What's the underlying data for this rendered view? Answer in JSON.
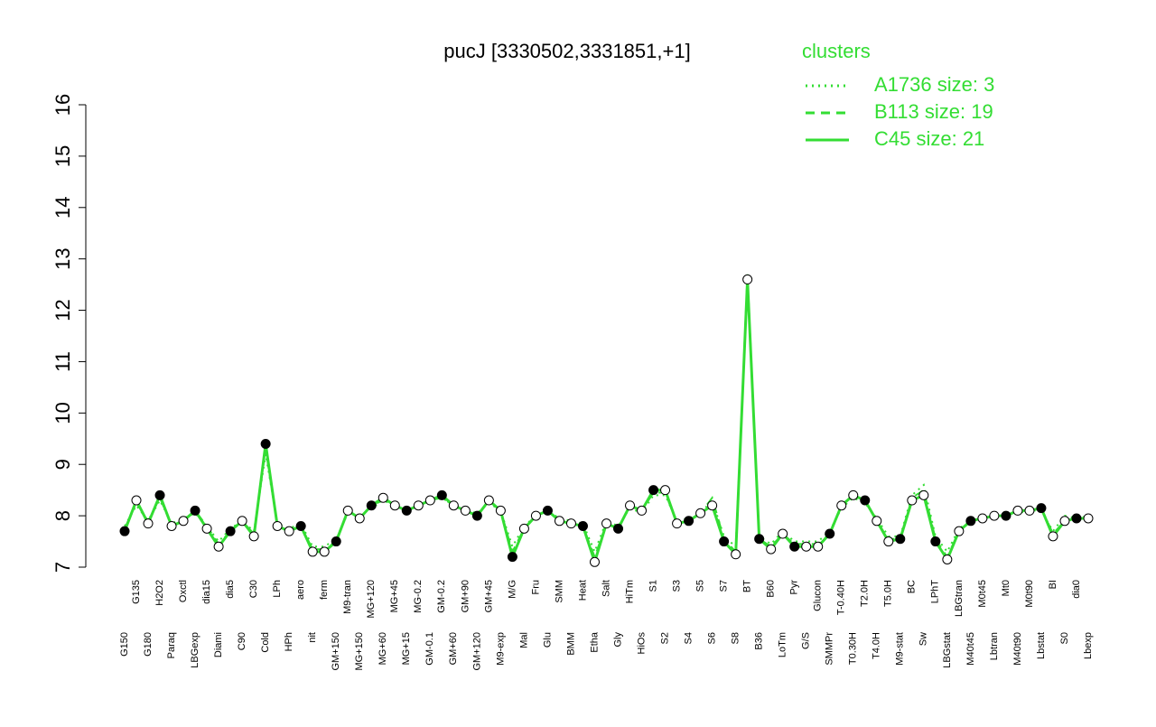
{
  "chart_data": {
    "type": "line",
    "title": "pucJ [3330502,3331851,+1]",
    "legend_title": "clusters",
    "legend_position": "top-right",
    "ylim": [
      7,
      16
    ],
    "yticks": [
      7,
      8,
      9,
      10,
      11,
      12,
      13,
      14,
      15,
      16
    ],
    "categories": [
      "G150",
      "G135",
      "G180",
      "H2O2",
      "Paraq",
      "Oxctl",
      "LBGexp",
      "dia15",
      "Diami",
      "dia5",
      "C90",
      "C30",
      "Cold",
      "LPh",
      "HPh",
      "aero",
      "nit",
      "ferm",
      "GM+150",
      "M9-tran",
      "MG+150",
      "MG+120",
      "MG+60",
      "MG+45",
      "MG+15",
      "MG-0.2",
      "GM-0.1",
      "GM-0.2",
      "GM+60",
      "GM+90",
      "GM+120",
      "GM+45",
      "M9-exp",
      "M/G",
      "Mal",
      "Fru",
      "Glu",
      "SMM",
      "BMM",
      "Heat",
      "Etha",
      "Salt",
      "Gly",
      "HiTm",
      "HiOs",
      "S1",
      "S2",
      "S3",
      "S4",
      "S5",
      "S6",
      "S7",
      "S8",
      "BT",
      "B36",
      "B60",
      "LoTm",
      "Pyr",
      "G/S",
      "Glucon",
      "SMMPr",
      "T-0.40H",
      "T0.30H",
      "T2.0H",
      "T4.0H",
      "T5.0H",
      "M9-stat",
      "BC",
      "Sw",
      "LPhT",
      "LBGstat",
      "LBGtran",
      "M40t45",
      "M0t45",
      "Lbtran",
      "Mt0",
      "M40t90",
      "M0t90",
      "Lbstat",
      "BI",
      "S0",
      "dia0",
      "Lbexp"
    ],
    "series": [
      {
        "name": "A1736 size: 3",
        "color": "#33dd33",
        "dash": "dotted",
        "values": [
          7.8,
          8.2,
          7.9,
          8.3,
          7.85,
          7.95,
          8.05,
          7.8,
          7.5,
          7.75,
          7.9,
          7.7,
          9.2,
          7.85,
          7.75,
          7.85,
          7.4,
          7.4,
          7.55,
          8.05,
          8.0,
          8.15,
          8.3,
          8.2,
          8.1,
          8.2,
          8.25,
          8.35,
          8.2,
          8.1,
          8.05,
          8.25,
          8.1,
          7.4,
          7.8,
          8.0,
          8.1,
          7.95,
          7.9,
          7.85,
          7.3,
          7.9,
          7.8,
          8.15,
          8.05,
          8.4,
          8.4,
          7.9,
          7.95,
          8.05,
          8.3,
          7.6,
          7.4,
          12.5,
          7.6,
          7.45,
          7.7,
          7.5,
          7.5,
          7.5,
          7.7,
          8.15,
          8.35,
          8.25,
          7.95,
          7.6,
          7.6,
          8.4,
          8.6,
          7.6,
          7.3,
          7.75,
          7.9,
          7.95,
          8.0,
          8.0,
          8.05,
          8.1,
          8.1,
          7.7,
          8.0,
          7.95,
          8.0
        ]
      },
      {
        "name": "B113 size: 19",
        "color": "#33dd33",
        "dash": "dashed",
        "values": [
          7.75,
          8.25,
          7.9,
          8.35,
          7.8,
          7.9,
          8.1,
          7.8,
          7.45,
          7.7,
          7.9,
          7.65,
          9.3,
          7.8,
          7.7,
          7.8,
          7.35,
          7.35,
          7.5,
          8.1,
          7.95,
          8.2,
          8.3,
          8.2,
          8.1,
          8.2,
          8.3,
          8.35,
          8.2,
          8.1,
          8.0,
          8.3,
          8.1,
          7.3,
          7.75,
          8.0,
          8.1,
          7.9,
          7.85,
          7.8,
          7.2,
          7.85,
          7.75,
          8.2,
          8.1,
          8.45,
          8.45,
          7.85,
          7.9,
          8.05,
          8.35,
          7.55,
          7.3,
          12.7,
          7.55,
          7.4,
          7.65,
          7.45,
          7.45,
          7.45,
          7.65,
          8.2,
          8.4,
          8.3,
          7.9,
          7.55,
          7.55,
          8.35,
          8.5,
          7.55,
          7.2,
          7.7,
          7.9,
          7.95,
          8.0,
          8.0,
          8.1,
          8.1,
          8.15,
          7.65,
          7.9,
          7.95,
          7.95
        ]
      },
      {
        "name": "C45 size: 21",
        "color": "#33dd33",
        "dash": "solid",
        "values": [
          7.7,
          8.3,
          7.85,
          8.4,
          7.8,
          7.9,
          8.1,
          7.75,
          7.4,
          7.7,
          7.9,
          7.6,
          9.4,
          7.8,
          7.7,
          7.8,
          7.3,
          7.3,
          7.5,
          8.1,
          7.95,
          8.2,
          8.35,
          8.2,
          8.1,
          8.2,
          8.3,
          8.4,
          8.2,
          8.1,
          8.0,
          8.3,
          8.1,
          7.2,
          7.75,
          8.0,
          8.1,
          7.9,
          7.85,
          7.8,
          7.1,
          7.85,
          7.75,
          8.2,
          8.1,
          8.5,
          8.5,
          7.85,
          7.9,
          8.05,
          8.2,
          7.5,
          7.25,
          12.6,
          7.55,
          7.35,
          7.65,
          7.4,
          7.4,
          7.4,
          7.65,
          8.2,
          8.4,
          8.3,
          7.9,
          7.5,
          7.55,
          8.3,
          8.4,
          7.5,
          7.15,
          7.7,
          7.9,
          7.95,
          8.0,
          8.0,
          8.1,
          8.1,
          8.15,
          7.6,
          7.9,
          7.95,
          7.95
        ]
      }
    ]
  }
}
